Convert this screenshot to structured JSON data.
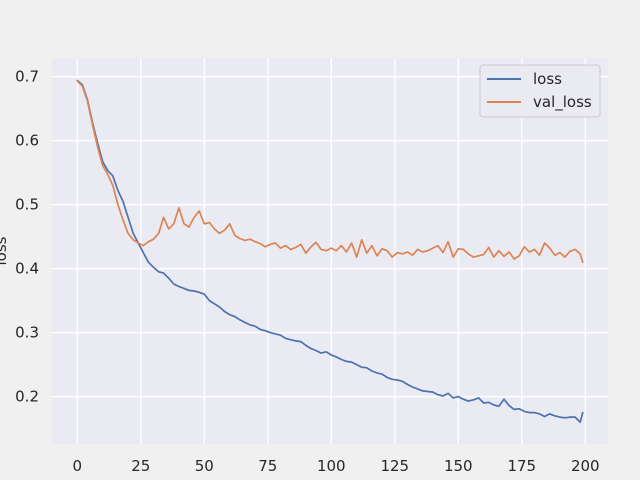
{
  "chart_data": {
    "type": "line",
    "title": "",
    "xlabel": "",
    "ylabel": "loss",
    "xlim": [
      -9.95,
      208.95
    ],
    "ylim": [
      0.126,
      0.729
    ],
    "x_ticks": [
      0,
      25,
      50,
      75,
      100,
      125,
      150,
      175,
      200
    ],
    "y_ticks": [
      0.2,
      0.3,
      0.4,
      0.5,
      0.6,
      0.7
    ],
    "grid": true,
    "legend_position": "top-right",
    "colors": {
      "background": "#eaeaf2",
      "page": "#f0f0f0",
      "grid": "#ffffff"
    },
    "series": [
      {
        "name": "loss",
        "color": "#4c72b0",
        "x": [
          0,
          2,
          4,
          6,
          8,
          10,
          12,
          14,
          16,
          18,
          20,
          22,
          24,
          26,
          28,
          30,
          32,
          34,
          36,
          38,
          40,
          42,
          44,
          46,
          48,
          50,
          52,
          54,
          56,
          58,
          60,
          62,
          64,
          66,
          68,
          70,
          72,
          74,
          76,
          78,
          80,
          82,
          84,
          86,
          88,
          90,
          92,
          94,
          96,
          98,
          100,
          102,
          104,
          106,
          108,
          110,
          112,
          114,
          116,
          118,
          120,
          122,
          124,
          126,
          128,
          130,
          132,
          134,
          136,
          138,
          140,
          142,
          144,
          146,
          148,
          150,
          152,
          154,
          156,
          158,
          160,
          162,
          164,
          166,
          168,
          170,
          172,
          174,
          176,
          178,
          180,
          182,
          184,
          186,
          188,
          190,
          192,
          194,
          196,
          198,
          199
        ],
        "y": [
          0.694,
          0.687,
          0.664,
          0.628,
          0.596,
          0.567,
          0.553,
          0.545,
          0.522,
          0.505,
          0.48,
          0.455,
          0.44,
          0.425,
          0.41,
          0.402,
          0.395,
          0.393,
          0.385,
          0.376,
          0.372,
          0.369,
          0.366,
          0.365,
          0.363,
          0.36,
          0.35,
          0.345,
          0.34,
          0.333,
          0.328,
          0.325,
          0.32,
          0.316,
          0.312,
          0.31,
          0.305,
          0.303,
          0.3,
          0.298,
          0.296,
          0.291,
          0.289,
          0.287,
          0.286,
          0.28,
          0.275,
          0.272,
          0.268,
          0.27,
          0.265,
          0.262,
          0.258,
          0.255,
          0.254,
          0.25,
          0.246,
          0.245,
          0.24,
          0.237,
          0.235,
          0.23,
          0.227,
          0.226,
          0.224,
          0.219,
          0.215,
          0.212,
          0.209,
          0.208,
          0.207,
          0.203,
          0.201,
          0.205,
          0.198,
          0.2,
          0.196,
          0.193,
          0.195,
          0.198,
          0.19,
          0.191,
          0.187,
          0.185,
          0.196,
          0.186,
          0.18,
          0.181,
          0.177,
          0.175,
          0.175,
          0.173,
          0.169,
          0.173,
          0.17,
          0.168,
          0.167,
          0.168,
          0.168,
          0.16,
          0.175
        ]
      },
      {
        "name": "val_loss",
        "color": "#dd8452",
        "x": [
          0,
          2,
          4,
          6,
          8,
          10,
          12,
          14,
          16,
          18,
          20,
          22,
          24,
          26,
          28,
          30,
          32,
          34,
          36,
          38,
          40,
          42,
          44,
          46,
          48,
          50,
          52,
          54,
          56,
          58,
          60,
          62,
          64,
          66,
          68,
          70,
          72,
          74,
          76,
          78,
          80,
          82,
          84,
          86,
          88,
          90,
          92,
          94,
          96,
          98,
          100,
          102,
          104,
          106,
          108,
          110,
          112,
          114,
          116,
          118,
          120,
          122,
          124,
          126,
          128,
          130,
          132,
          134,
          136,
          138,
          140,
          142,
          144,
          146,
          148,
          150,
          152,
          154,
          156,
          158,
          160,
          162,
          164,
          166,
          168,
          170,
          172,
          174,
          176,
          178,
          180,
          182,
          184,
          186,
          188,
          190,
          192,
          194,
          196,
          198,
          199
        ],
        "y": [
          0.693,
          0.685,
          0.662,
          0.625,
          0.59,
          0.561,
          0.547,
          0.53,
          0.5,
          0.476,
          0.455,
          0.445,
          0.44,
          0.436,
          0.442,
          0.446,
          0.455,
          0.48,
          0.462,
          0.47,
          0.495,
          0.47,
          0.465,
          0.48,
          0.49,
          0.47,
          0.472,
          0.462,
          0.455,
          0.46,
          0.47,
          0.452,
          0.447,
          0.444,
          0.446,
          0.442,
          0.439,
          0.434,
          0.438,
          0.44,
          0.432,
          0.436,
          0.43,
          0.433,
          0.438,
          0.424,
          0.434,
          0.441,
          0.43,
          0.428,
          0.432,
          0.428,
          0.436,
          0.426,
          0.44,
          0.418,
          0.445,
          0.424,
          0.436,
          0.42,
          0.431,
          0.428,
          0.418,
          0.425,
          0.423,
          0.426,
          0.421,
          0.43,
          0.426,
          0.428,
          0.432,
          0.436,
          0.425,
          0.442,
          0.418,
          0.431,
          0.43,
          0.423,
          0.418,
          0.42,
          0.422,
          0.433,
          0.418,
          0.428,
          0.419,
          0.426,
          0.415,
          0.42,
          0.434,
          0.426,
          0.43,
          0.421,
          0.44,
          0.432,
          0.421,
          0.425,
          0.418,
          0.427,
          0.43,
          0.423,
          0.41
        ]
      }
    ]
  }
}
